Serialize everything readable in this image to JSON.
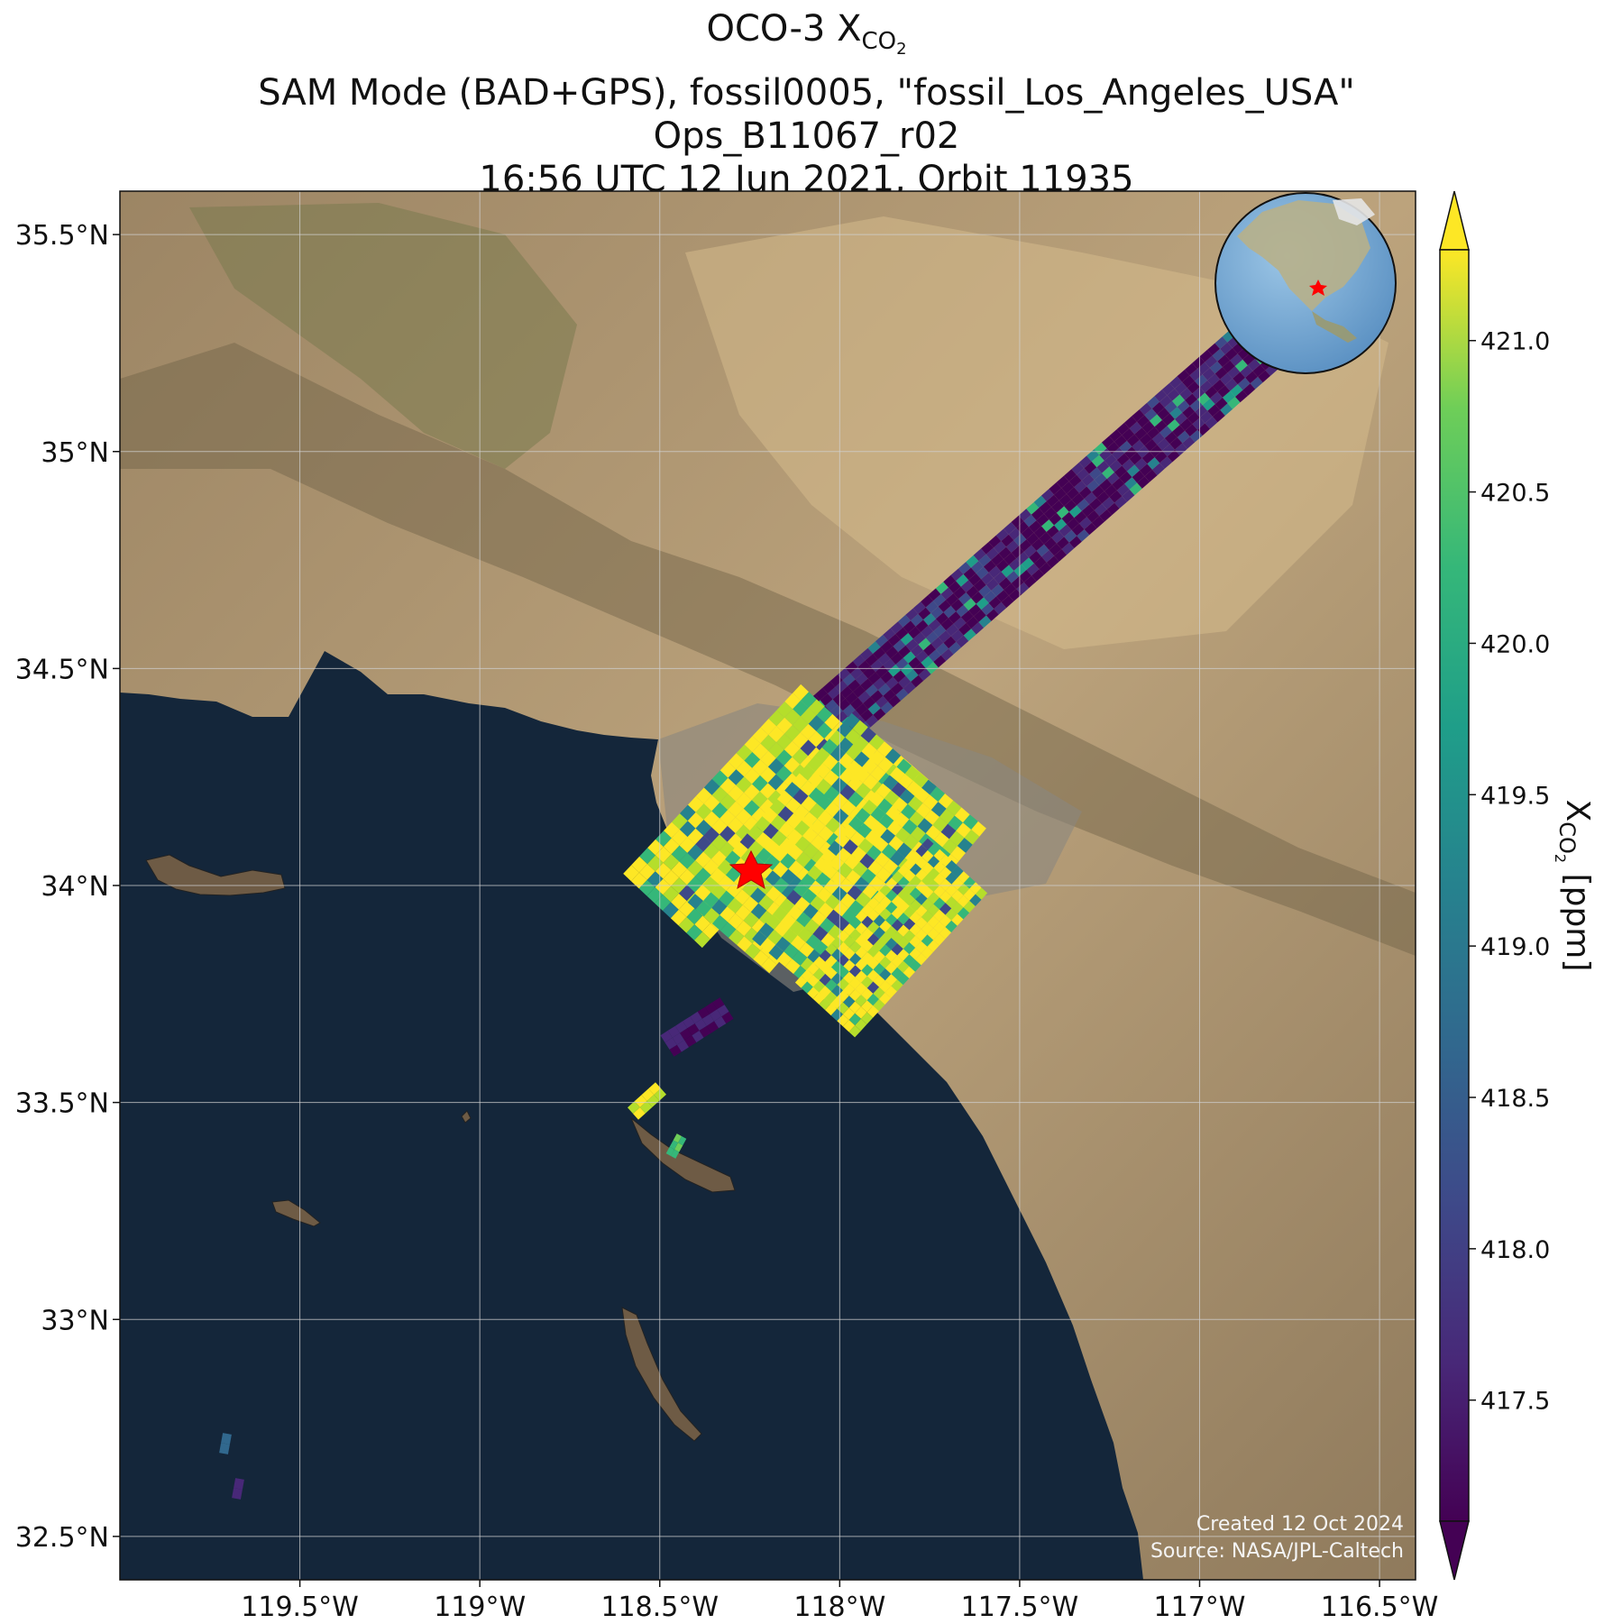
{
  "title": {
    "line1_main": "OCO-3 X",
    "line1_sub": "CO",
    "line1_subsub": "2",
    "line2": "SAM Mode (BAD+GPS), fossil0005, \"fossil_Los_Angeles_USA\"",
    "line3": "Ops_B11067_r02",
    "line4": "16:56 UTC 12 Jun 2021, Orbit 11935"
  },
  "map": {
    "lon_range": [
      -120.0,
      -116.4
    ],
    "lat_range": [
      32.4,
      35.6
    ],
    "lon_ticks": [
      {
        "value": -119.5,
        "label": "119.5°W"
      },
      {
        "value": -119.0,
        "label": "119°W"
      },
      {
        "value": -118.5,
        "label": "118.5°W"
      },
      {
        "value": -118.0,
        "label": "118°W"
      },
      {
        "value": -117.5,
        "label": "117.5°W"
      },
      {
        "value": -117.0,
        "label": "117°W"
      },
      {
        "value": -116.5,
        "label": "116.5°W"
      }
    ],
    "lat_ticks": [
      {
        "value": 35.5,
        "label": "35.5°N"
      },
      {
        "value": 35.0,
        "label": "35°N"
      },
      {
        "value": 34.5,
        "label": "34.5°N"
      },
      {
        "value": 34.0,
        "label": "34°N"
      },
      {
        "value": 33.5,
        "label": "33.5°N"
      },
      {
        "value": 33.0,
        "label": "33°N"
      },
      {
        "value": 32.5,
        "label": "32.5°N"
      }
    ],
    "grid": true,
    "target_marker": {
      "lon": -118.25,
      "lat": 34.05,
      "color": "#ff0000"
    },
    "credit_line1": "Created 12 Oct 2024",
    "credit_line2": "Source: NASA/JPL-Caltech",
    "inset_globe": "north-america-globe-with-target-star"
  },
  "colorbar": {
    "colormap": "viridis",
    "range": [
      417.1,
      421.3
    ],
    "extend": "both",
    "ticks": [
      {
        "value": 417.5,
        "label": "417.5"
      },
      {
        "value": 418.0,
        "label": "418.0"
      },
      {
        "value": 418.5,
        "label": "418.5"
      },
      {
        "value": 419.0,
        "label": "419.0"
      },
      {
        "value": 419.5,
        "label": "419.5"
      },
      {
        "value": 420.0,
        "label": "420.0"
      },
      {
        "value": 420.5,
        "label": "420.5"
      },
      {
        "value": 421.0,
        "label": "421.0"
      }
    ],
    "label_main": "X",
    "label_sub": "CO",
    "label_subsub": "2",
    "label_unit": " [ppm]",
    "colors": {
      "viridis_low": "#440154",
      "viridis_mid": "#21918c",
      "viridis_high": "#fde725",
      "ocean": "#14263a",
      "land": "#b29a72"
    }
  }
}
